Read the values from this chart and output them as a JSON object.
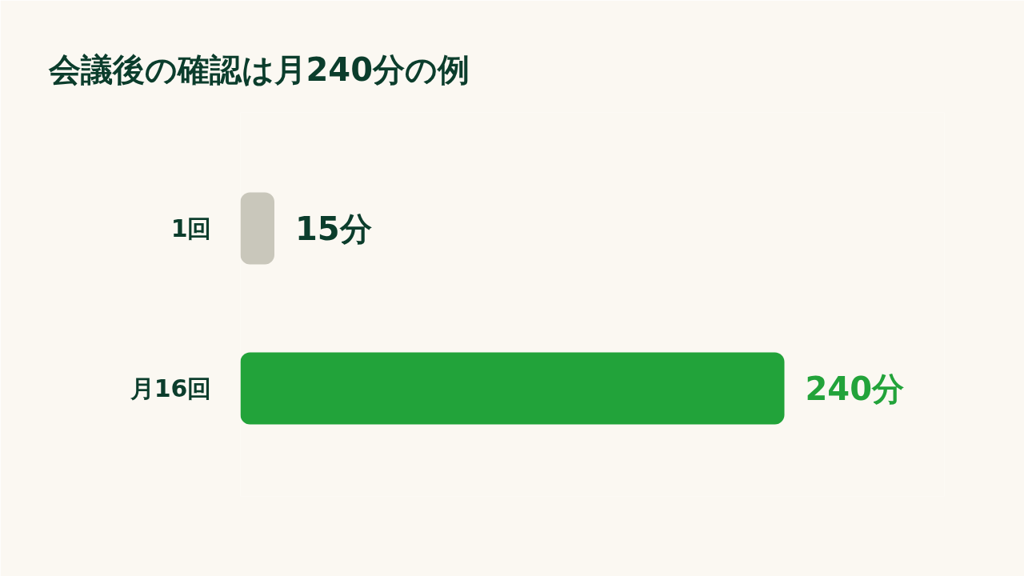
{
  "chart_data": {
    "type": "bar",
    "orientation": "horizontal",
    "title": "会議後の確認は月240分の例",
    "categories": [
      "1回",
      "月16回"
    ],
    "values": [
      15,
      240
    ],
    "colors": [
      "#c9c7bb",
      "#22a33a"
    ],
    "value_labels": [
      "15分",
      "240分"
    ],
    "tick_labels": "y"
  }
}
